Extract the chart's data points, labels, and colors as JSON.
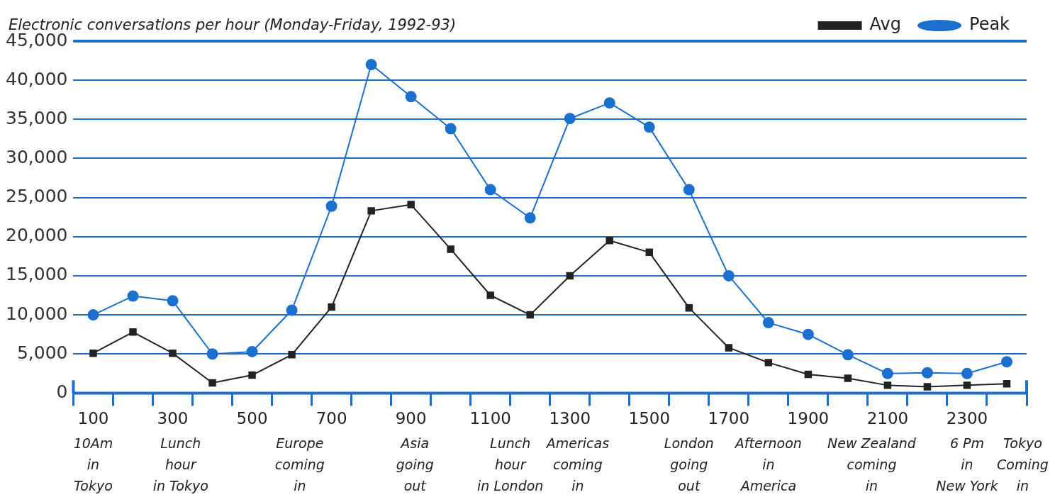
{
  "chart_data": {
    "type": "line",
    "title": "Electronic conversations per hour (Monday-Friday, 1992-93)",
    "categories": [
      "100",
      null,
      "300",
      null,
      "500",
      null,
      "700",
      null,
      "900",
      null,
      "1100",
      null,
      "1300",
      null,
      "1500",
      null,
      "1700",
      null,
      "1900",
      null,
      "2100",
      null,
      "2300",
      null
    ],
    "series": [
      {
        "name": "Avg",
        "color": "#222222",
        "marker": "square",
        "values": [
          5100,
          7800,
          5100,
          1300,
          2300,
          4900,
          11000,
          23300,
          24100,
          18400,
          12500,
          10000,
          15000,
          19500,
          18000,
          10900,
          5800,
          3900,
          2400,
          1900,
          1000,
          800,
          1000,
          1200
        ]
      },
      {
        "name": "Peak",
        "color": "#1a6fcf",
        "marker": "circle",
        "values": [
          10000,
          12400,
          11800,
          5000,
          5300,
          10600,
          23900,
          42000,
          37900,
          33800,
          26000,
          22400,
          35100,
          37100,
          34000,
          26000,
          15000,
          9000,
          7500,
          4900,
          2500,
          2600,
          2500,
          4000
        ]
      }
    ],
    "ylim": [
      0,
      45000
    ],
    "yticks": [
      {
        "value": 0,
        "label": "0"
      },
      {
        "value": 5000,
        "label": "5,000"
      },
      {
        "value": 10000,
        "label": "10,000"
      },
      {
        "value": 15000,
        "label": "15,000"
      },
      {
        "value": 20000,
        "label": "20,000"
      },
      {
        "value": 25000,
        "label": "25,000"
      },
      {
        "value": 30000,
        "label": "30,000"
      },
      {
        "value": 35000,
        "label": "35,000"
      },
      {
        "value": 40000,
        "label": "40,000"
      },
      {
        "value": 45000,
        "label": "45,000"
      }
    ],
    "grid": "y",
    "legend": "top right",
    "annotations": [
      "10Am\nin\nTokyo",
      "Lunch\nhour\nin Tokyo",
      "Europe\ncoming\nin",
      "Asia\ngoing\nout",
      "Lunch\nhour\nin London",
      "Americas\ncoming\nin",
      "London\ngoing\nout",
      "Afternoon\nin\nAmerica",
      "New Zealand\ncoming\nin",
      "6 Pm\nin\nNew York",
      "Tokyo\nComing\nin"
    ]
  }
}
